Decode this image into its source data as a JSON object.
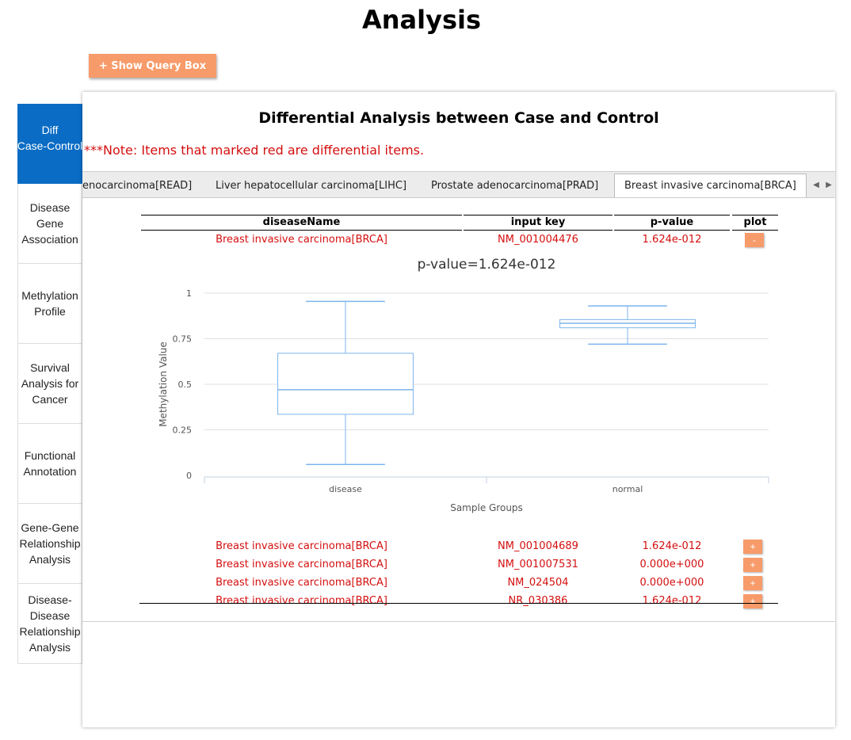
{
  "page": {
    "title": "Analysis"
  },
  "toolbar": {
    "show_query_label": "+ Show Query Box"
  },
  "sidebar": {
    "items": [
      {
        "label": "Diff\nCase-Control",
        "active": true
      },
      {
        "label": "Disease\nGene\nAssociation"
      },
      {
        "label": "Methylation\nProfile"
      },
      {
        "label": "Survival\nAnalysis for\nCancer"
      },
      {
        "label": "Functional\nAnnotation"
      },
      {
        "label": "Gene-Gene\nRelationship\nAnalysis"
      },
      {
        "label": "Disease-\nDisease\nRelationship\nAnalysis"
      }
    ]
  },
  "panel": {
    "title": "Differential Analysis between Case and Control",
    "note": "***Note: Items that marked red are differential items."
  },
  "tabs": [
    {
      "label": "enocarcinoma[READ]"
    },
    {
      "label": "Liver hepatocellular carcinoma[LIHC]"
    },
    {
      "label": "Prostate adenocarcinoma[PRAD]"
    },
    {
      "label": "Breast invasive carcinoma[BRCA]",
      "active": true
    }
  ],
  "table": {
    "headers": [
      "diseaseName",
      "input key",
      "p-value",
      "plot"
    ],
    "rows": [
      {
        "disease": "Breast invasive carcinoma[BRCA]",
        "key": "NM_001004476",
        "pvalue": "1.624e-012",
        "plot": "-"
      },
      {
        "disease": "Breast invasive carcinoma[BRCA]",
        "key": "NM_001004689",
        "pvalue": "1.624e-012",
        "plot": "+"
      },
      {
        "disease": "Breast invasive carcinoma[BRCA]",
        "key": "NM_001007531",
        "pvalue": "0.000e+000",
        "plot": "+"
      },
      {
        "disease": "Breast invasive carcinoma[BRCA]",
        "key": "NM_024504",
        "pvalue": "0.000e+000",
        "plot": "+"
      },
      {
        "disease": "Breast invasive carcinoma[BRCA]",
        "key": "NR_030386",
        "pvalue": "1.624e-012",
        "plot": "+"
      }
    ]
  },
  "chart_data": {
    "type": "box",
    "title": "p-value=1.624e-012",
    "xlabel": "Sample Groups",
    "ylabel": "Methylation Value",
    "ylim": [
      0,
      1
    ],
    "yticks": [
      0,
      0.25,
      0.5,
      0.75,
      1
    ],
    "ytick_labels": [
      "0",
      "0.25",
      "0.5",
      "0.75",
      "1"
    ],
    "grid": true,
    "categories": [
      "disease",
      "normal"
    ],
    "boxes": [
      {
        "category": "disease",
        "min": 0.06,
        "q1": 0.335,
        "median": 0.47,
        "q3": 0.67,
        "max": 0.955
      },
      {
        "category": "normal",
        "min": 0.72,
        "q1": 0.81,
        "median": 0.835,
        "q3": 0.855,
        "max": 0.93
      }
    ],
    "color": "#7cb5ec"
  }
}
